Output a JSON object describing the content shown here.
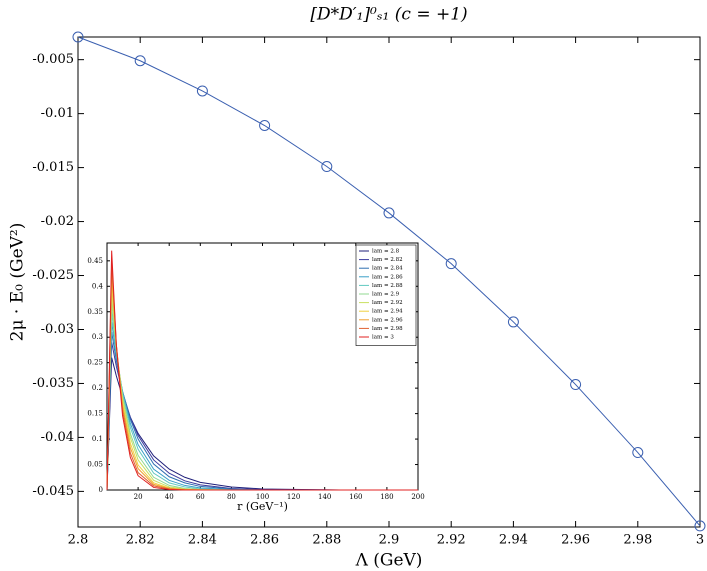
{
  "chart_data": [
    {
      "type": "line",
      "title": "[D*D′₁]⁰ₛ₁ (c = +1)",
      "x_label": "Λ (GeV)",
      "y_label": "2μ · E₀ (GeV²)",
      "x": [
        2.8,
        2.82,
        2.84,
        2.86,
        2.88,
        2.9,
        2.92,
        2.94,
        2.96,
        2.98,
        3
      ],
      "series": [
        {
          "color": "#3a5fb0",
          "marker": "circle",
          "values": [
            -0.0029,
            -0.0051,
            -0.0079,
            -0.0111,
            -0.0149,
            -0.0192,
            -0.0239,
            -0.0293,
            -0.0351,
            -0.0414,
            -0.0482
          ]
        }
      ],
      "xlim": [
        2.8,
        3
      ],
      "xticks": [
        2.8,
        2.82,
        2.84,
        2.86,
        2.88,
        2.9,
        2.92,
        2.94,
        2.96,
        2.98,
        3
      ],
      "ylim": [
        -0.0483,
        -0.0029
      ],
      "yticks": [
        -0.045,
        -0.04,
        -0.035,
        -0.03,
        -0.025,
        -0.02,
        -0.015,
        -0.01,
        -0.005
      ]
    },
    {
      "type": "line",
      "x_label": "r (GeV⁻¹)",
      "legend": "upper right",
      "x": [
        0,
        3,
        6,
        10,
        15,
        20,
        30,
        40,
        50,
        60,
        80,
        100,
        150,
        200
      ],
      "series": [
        {
          "name": "lam = 2.8",
          "color": "#1f1f7a",
          "values": [
            0,
            0.26,
            0.224,
            0.183,
            0.143,
            0.111,
            0.067,
            0.041,
            0.025,
            0.015,
            0.006,
            0.002,
            0,
            0
          ]
        },
        {
          "name": "lam = 2.82",
          "color": "#3a3a9e",
          "values": [
            0,
            0.29,
            0.243,
            0.192,
            0.143,
            0.107,
            0.059,
            0.033,
            0.018,
            0.01,
            0.003,
            0.001,
            0,
            0
          ]
        },
        {
          "name": "lam = 2.84",
          "color": "#2f6fb0",
          "values": [
            0,
            0.31,
            0.254,
            0.194,
            0.139,
            0.1,
            0.051,
            0.026,
            0.014,
            0.007,
            0.002,
            0,
            0,
            0
          ]
        },
        {
          "name": "lam = 2.86",
          "color": "#3aa0c8",
          "values": [
            0,
            0.33,
            0.262,
            0.193,
            0.131,
            0.089,
            0.041,
            0.019,
            0.009,
            0.004,
            0.001,
            0,
            0,
            0
          ]
        },
        {
          "name": "lam = 2.88",
          "color": "#60c8c0",
          "values": [
            0,
            0.35,
            0.27,
            0.19,
            0.123,
            0.08,
            0.033,
            0.014,
            0.006,
            0.002,
            0,
            0,
            0,
            0
          ]
        },
        {
          "name": "lam = 2.9",
          "color": "#90d890",
          "values": [
            0,
            0.37,
            0.274,
            0.184,
            0.111,
            0.068,
            0.025,
            0.009,
            0.003,
            0.001,
            0,
            0,
            0,
            0
          ]
        },
        {
          "name": "lam = 2.92",
          "color": "#c8e060",
          "values": [
            0,
            0.39,
            0.28,
            0.179,
            0.103,
            0.059,
            0.019,
            0.006,
            0.002,
            0.001,
            0,
            0,
            0,
            0
          ]
        },
        {
          "name": "lam = 2.94",
          "color": "#f0d040",
          "values": [
            0,
            0.41,
            0.282,
            0.171,
            0.092,
            0.049,
            0.014,
            0.004,
            0.001,
            0,
            0,
            0,
            0,
            0
          ]
        },
        {
          "name": "lam = 2.96",
          "color": "#f0a030",
          "values": [
            0,
            0.43,
            0.285,
            0.165,
            0.083,
            0.042,
            0.011,
            0.003,
            0.001,
            0,
            0,
            0,
            0,
            0
          ]
        },
        {
          "name": "lam = 2.98",
          "color": "#e06030",
          "values": [
            0,
            0.45,
            0.286,
            0.156,
            0.073,
            0.034,
            0.008,
            0.002,
            0,
            0,
            0,
            0,
            0,
            0
          ]
        },
        {
          "name": "lam = 3",
          "color": "#e02020",
          "values": [
            0,
            0.47,
            0.285,
            0.146,
            0.064,
            0.028,
            0.005,
            0.001,
            0,
            0,
            0,
            0,
            0,
            0
          ]
        }
      ],
      "xlim": [
        0,
        200
      ],
      "xticks": [
        20,
        40,
        60,
        80,
        100,
        120,
        140,
        160,
        180,
        200
      ],
      "ylim": [
        0,
        0.485
      ],
      "yticks": [
        0,
        0.05,
        0.1,
        0.15,
        0.2,
        0.25,
        0.3,
        0.35,
        0.4,
        0.45
      ]
    }
  ]
}
